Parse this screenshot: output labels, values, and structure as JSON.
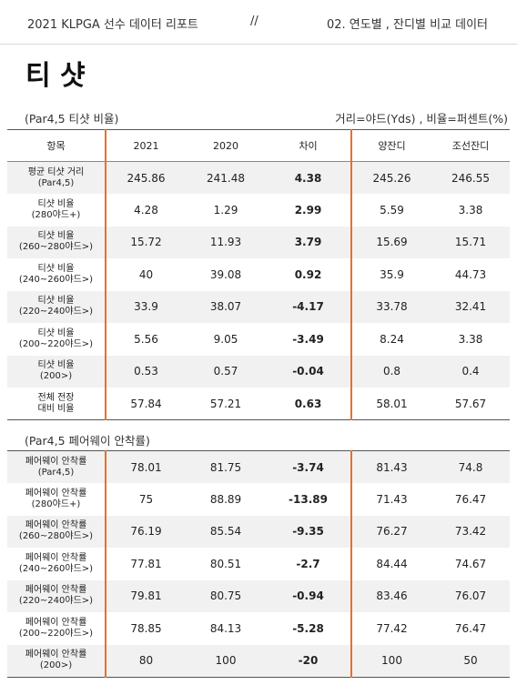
{
  "header": {
    "left": "2021 KLPGA 선수 데이터 리포트",
    "middle": "//",
    "right": "02. 연도별 , 잔디별 비교 데이터"
  },
  "title": "티 샷",
  "section1": {
    "label": "(Par4,5 티샷 비율)",
    "units": "거리=야드(Yds) , 비율=퍼센트(%)",
    "columns": [
      "항목",
      "2021",
      "2020",
      "차이",
      "양잔디",
      "조선잔디"
    ],
    "rows": [
      {
        "label1": "평균 티샷 거리",
        "label2": "(Par4,5)",
        "y2021": "245.86",
        "y2020": "241.48",
        "diff": "4.38",
        "yang": "245.26",
        "joseon": "246.55"
      },
      {
        "label1": "티샷 비율",
        "label2": "(280야드+)",
        "y2021": "4.28",
        "y2020": "1.29",
        "diff": "2.99",
        "yang": "5.59",
        "joseon": "3.38"
      },
      {
        "label1": "티샷 비율",
        "label2": "(260~280야드>)",
        "y2021": "15.72",
        "y2020": "11.93",
        "diff": "3.79",
        "yang": "15.69",
        "joseon": "15.71"
      },
      {
        "label1": "티샷 비율",
        "label2": "(240~260야드>)",
        "y2021": "40",
        "y2020": "39.08",
        "diff": "0.92",
        "yang": "35.9",
        "joseon": "44.73"
      },
      {
        "label1": "티샷 비율",
        "label2": "(220~240야드>)",
        "y2021": "33.9",
        "y2020": "38.07",
        "diff": "-4.17",
        "yang": "33.78",
        "joseon": "32.41"
      },
      {
        "label1": "티샷 비율",
        "label2": "(200~220야드>)",
        "y2021": "5.56",
        "y2020": "9.05",
        "diff": "-3.49",
        "yang": "8.24",
        "joseon": "3.38"
      },
      {
        "label1": "티샷 비율",
        "label2": "(200>)",
        "y2021": "0.53",
        "y2020": "0.57",
        "diff": "-0.04",
        "yang": "0.8",
        "joseon": "0.4"
      },
      {
        "label1": "전체 전장",
        "label2": "대비 비율",
        "y2021": "57.84",
        "y2020": "57.21",
        "diff": "0.63",
        "yang": "58.01",
        "joseon": "57.67"
      }
    ]
  },
  "section2": {
    "label": "(Par4,5 페어웨이 안착률)",
    "rows": [
      {
        "label1": "페어웨이 안착률",
        "label2": "(Par4,5)",
        "y2021": "78.01",
        "y2020": "81.75",
        "diff": "-3.74",
        "yang": "81.43",
        "joseon": "74.8"
      },
      {
        "label1": "페어웨이 안착률",
        "label2": "(280야드+)",
        "y2021": "75",
        "y2020": "88.89",
        "diff": "-13.89",
        "yang": "71.43",
        "joseon": "76.47"
      },
      {
        "label1": "페어웨이 안착률",
        "label2": "(260~280야드>)",
        "y2021": "76.19",
        "y2020": "85.54",
        "diff": "-9.35",
        "yang": "76.27",
        "joseon": "73.42"
      },
      {
        "label1": "페어웨이 안착률",
        "label2": "(240~260야드>)",
        "y2021": "77.81",
        "y2020": "80.51",
        "diff": "-2.7",
        "yang": "84.44",
        "joseon": "74.67"
      },
      {
        "label1": "페어웨이 안착률",
        "label2": "(220~240야드>)",
        "y2021": "79.81",
        "y2020": "80.75",
        "diff": "-0.94",
        "yang": "83.46",
        "joseon": "76.07"
      },
      {
        "label1": "페어웨이 안착률",
        "label2": "(200~220야드>)",
        "y2021": "78.85",
        "y2020": "84.13",
        "diff": "-5.28",
        "yang": "77.42",
        "joseon": "76.47"
      },
      {
        "label1": "페어웨이 안착률",
        "label2": "(200>)",
        "y2021": "80",
        "y2020": "100",
        "diff": "-20",
        "yang": "100",
        "joseon": "50"
      }
    ]
  },
  "colors": {
    "accent": "#e8702a",
    "row_shade": "#f1f1f1"
  }
}
